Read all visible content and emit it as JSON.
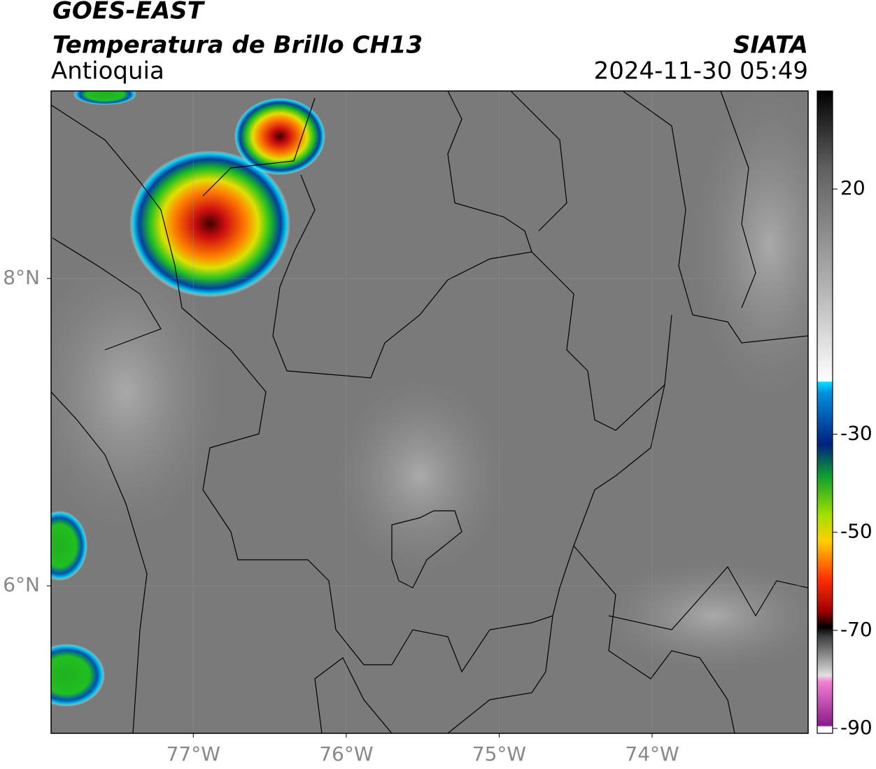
{
  "header": {
    "title": "GOES-EAST",
    "subtitle": "Temperatura de Brillo CH13",
    "region": "Antioquia",
    "source": "SIATA",
    "datetime": "2024-11-30 05:49"
  },
  "map": {
    "xlim": [
      -77.93,
      -72.98
    ],
    "ylim": [
      5.04,
      9.22
    ],
    "xticks": [
      {
        "value": -77,
        "label": "77°W"
      },
      {
        "value": -76,
        "label": "76°W"
      },
      {
        "value": -75,
        "label": "75°W"
      },
      {
        "value": -74,
        "label": "74°W"
      }
    ],
    "yticks": [
      {
        "value": 8,
        "label": "8°N"
      },
      {
        "value": 6,
        "label": "6°N"
      }
    ]
  },
  "colorbar": {
    "lim": [
      -91,
      40
    ],
    "ticks": [
      20,
      -30,
      -50,
      -70,
      -90
    ]
  }
}
